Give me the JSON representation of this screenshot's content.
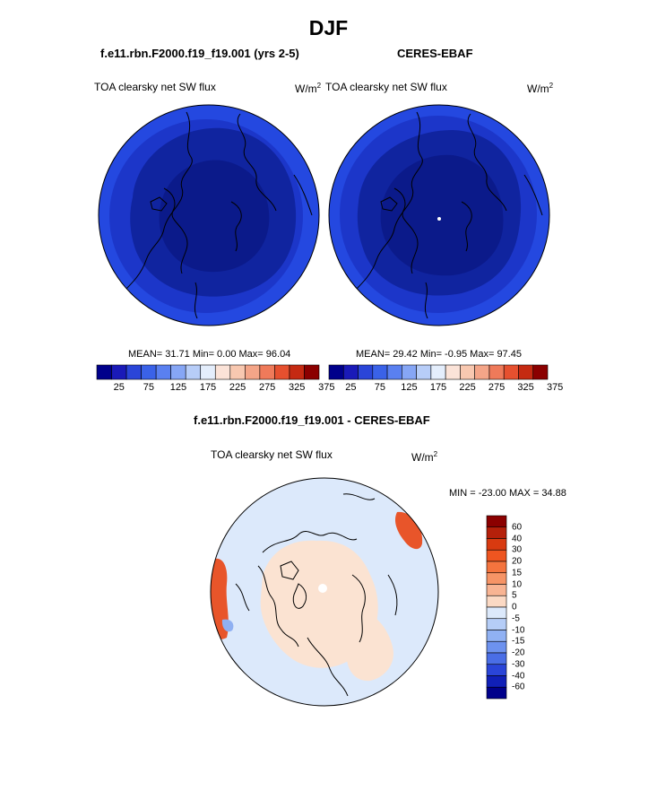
{
  "figure": {
    "title": "DJF"
  },
  "panel_left": {
    "case_title": "f.e11.rbn.F2000.f19_f19.001 (yrs 2-5)",
    "variable": "TOA clearsky net SW flux",
    "units": "W/m",
    "units_sup": "2",
    "stats": "MEAN=  31.71  Min=   0.00  Max=  96.04"
  },
  "panel_right": {
    "case_title": "CERES-EBAF",
    "variable": "TOA clearsky net SW flux",
    "units": "W/m",
    "units_sup": "2",
    "stats": "MEAN=  29.42  Min=  -0.95  Max=  97.45"
  },
  "panel_diff": {
    "case_title": "f.e11.rbn.F2000.f19_f19.001 - CERES-EBAF",
    "variable": "TOA clearsky net SW flux",
    "units": "W/m",
    "units_sup": "2",
    "minmax": "MIN = -23.00 MAX =  34.88"
  },
  "colorbar_top": {
    "tick_labels": [
      "25",
      "75",
      "125",
      "175",
      "225",
      "275",
      "325",
      "375"
    ],
    "colors": [
      "#00008b",
      "#1a1ab8",
      "#2a45d8",
      "#3a62e8",
      "#5a80f0",
      "#86a6f5",
      "#b7cdf8",
      "#e4eefc",
      "#fbe3d8",
      "#f8c8b0",
      "#f4a588",
      "#ef7a5a",
      "#e6502f",
      "#c52a12",
      "#8b0000"
    ]
  },
  "colorbar_diff": {
    "tick_labels": [
      "60",
      "40",
      "30",
      "20",
      "15",
      "10",
      "5",
      "0",
      "-5",
      "-10",
      "-15",
      "-20",
      "-30",
      "-40",
      "-60"
    ],
    "colors": [
      "#8b0000",
      "#b5200a",
      "#d83a10",
      "#ee5520",
      "#f4743e",
      "#f69466",
      "#f8b493",
      "#fbd9c4",
      "#dce9fb",
      "#b5cdf7",
      "#90b1f3",
      "#6d92ef",
      "#4a6ee6",
      "#2a45d8",
      "#1020b8",
      "#00008b"
    ]
  },
  "colors": {
    "field_outer": "#2448e0",
    "field_mid": "#1c36c9",
    "field_inner": "#10249f",
    "field_core": "#0b1a8a",
    "diff_background": "#dce9fb",
    "diff_land": "#fbe3d2",
    "diff_positive": "#e8552a",
    "diff_negative": "#8fb0f2"
  }
}
